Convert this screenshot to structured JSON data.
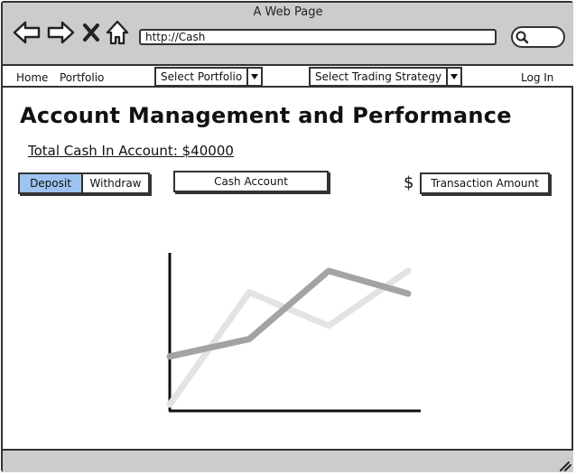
{
  "window": {
    "title": "A Web Page"
  },
  "browser": {
    "url": "http://Cash",
    "icons": [
      "back-arrow-icon",
      "forward-arrow-icon",
      "close-x-icon",
      "home-icon",
      "search-icon"
    ]
  },
  "nav": {
    "home": "Home",
    "portfolio": "Portfolio",
    "select_portfolio": "Select Portfolio",
    "select_strategy": "Select Trading Strategy",
    "login": "Log In"
  },
  "main": {
    "title": "Account Management and Performance",
    "total_cash": "Total Cash In Account: $40000",
    "deposit": "Deposit",
    "withdraw": "Withdraw",
    "cash_account": "Cash Account",
    "currency_symbol": "$",
    "transaction_amount": "Transaction Amount"
  },
  "colors": {
    "active_toggle": "#9dc3f0",
    "chrome": "#cccccc"
  },
  "chart_data": {
    "type": "line",
    "title": "",
    "xlabel": "",
    "ylabel": "",
    "x": [
      0,
      1,
      2,
      3
    ],
    "series": [
      {
        "values": [
          0.36,
          0.49,
          1.0,
          0.83
        ],
        "color": "#a3a3a3"
      },
      {
        "values": [
          0.0,
          0.84,
          0.59,
          1.0
        ],
        "color": "#e3e3e3"
      }
    ],
    "ylim": [
      0,
      1
    ],
    "grid": false
  }
}
